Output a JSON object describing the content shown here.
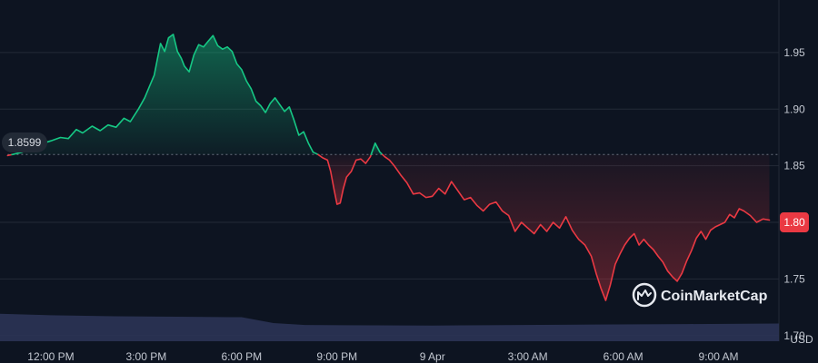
{
  "chart_data": {
    "type": "area",
    "title": "",
    "currency": "USD",
    "brand": "CoinMarketCap",
    "baseline_value": 1.8599,
    "baseline_label": "1.8599",
    "current_value": 1.8,
    "current_label": "1.80",
    "ylim": [
      1.695,
      1.99
    ],
    "y_ticks": [
      {
        "value": 1.95,
        "label": "1.95"
      },
      {
        "value": 1.9,
        "label": "1.90"
      },
      {
        "value": 1.85,
        "label": "1.85"
      },
      {
        "value": 1.8,
        "label": "1.80"
      },
      {
        "value": 1.75,
        "label": "1.75"
      },
      {
        "value": 1.7,
        "label": "1.70"
      }
    ],
    "x_unit": "hours since 12:00 PM",
    "xlim": [
      -1.6,
      22.9
    ],
    "x_ticks": [
      {
        "value": 0,
        "label": "12:00 PM"
      },
      {
        "value": 3,
        "label": "3:00 PM"
      },
      {
        "value": 6,
        "label": "6:00 PM"
      },
      {
        "value": 9,
        "label": "9:00 PM"
      },
      {
        "value": 12,
        "label": "9 Apr"
      },
      {
        "value": 15,
        "label": "3:00 AM"
      },
      {
        "value": 18,
        "label": "6:00 AM"
      },
      {
        "value": 21,
        "label": "9:00 AM"
      }
    ],
    "grid": true,
    "colors": {
      "background": "#0d1421",
      "up": "#16c784",
      "down": "#ea3943",
      "grid": "#232a37",
      "volume": "#2b3355",
      "baseline": "#6b7280"
    },
    "series": [
      {
        "name": "",
        "points": [
          [
            -1.36,
            1.859
          ],
          [
            -0.9,
            1.862
          ],
          [
            -0.45,
            1.868
          ],
          [
            0.0,
            1.872
          ],
          [
            0.3,
            1.875
          ],
          [
            0.55,
            1.874
          ],
          [
            0.8,
            1.882
          ],
          [
            1.0,
            1.879
          ],
          [
            1.3,
            1.885
          ],
          [
            1.55,
            1.881
          ],
          [
            1.8,
            1.886
          ],
          [
            2.05,
            1.884
          ],
          [
            2.3,
            1.892
          ],
          [
            2.5,
            1.889
          ],
          [
            2.75,
            1.9
          ],
          [
            2.95,
            1.91
          ],
          [
            3.1,
            1.92
          ],
          [
            3.25,
            1.93
          ],
          [
            3.35,
            1.944
          ],
          [
            3.45,
            1.958
          ],
          [
            3.58,
            1.951
          ],
          [
            3.7,
            1.963
          ],
          [
            3.85,
            1.966
          ],
          [
            3.98,
            1.951
          ],
          [
            4.1,
            1.945
          ],
          [
            4.2,
            1.938
          ],
          [
            4.35,
            1.933
          ],
          [
            4.5,
            1.948
          ],
          [
            4.65,
            1.957
          ],
          [
            4.8,
            1.955
          ],
          [
            4.95,
            1.96
          ],
          [
            5.1,
            1.965
          ],
          [
            5.25,
            1.956
          ],
          [
            5.4,
            1.953
          ],
          [
            5.55,
            1.955
          ],
          [
            5.7,
            1.951
          ],
          [
            5.85,
            1.94
          ],
          [
            6.0,
            1.935
          ],
          [
            6.15,
            1.925
          ],
          [
            6.3,
            1.918
          ],
          [
            6.45,
            1.907
          ],
          [
            6.6,
            1.903
          ],
          [
            6.75,
            1.897
          ],
          [
            6.9,
            1.905
          ],
          [
            7.05,
            1.91
          ],
          [
            7.2,
            1.904
          ],
          [
            7.35,
            1.898
          ],
          [
            7.5,
            1.902
          ],
          [
            7.65,
            1.89
          ],
          [
            7.8,
            1.877
          ],
          [
            7.95,
            1.88
          ],
          [
            8.1,
            1.87
          ],
          [
            8.25,
            1.862
          ],
          [
            8.4,
            1.86
          ],
          [
            8.55,
            1.857
          ],
          [
            8.7,
            1.855
          ],
          [
            8.8,
            1.845
          ],
          [
            8.9,
            1.83
          ],
          [
            9.0,
            1.816
          ],
          [
            9.1,
            1.817
          ],
          [
            9.2,
            1.83
          ],
          [
            9.3,
            1.84
          ],
          [
            9.45,
            1.845
          ],
          [
            9.6,
            1.855
          ],
          [
            9.75,
            1.856
          ],
          [
            9.9,
            1.852
          ],
          [
            10.05,
            1.858
          ],
          [
            10.2,
            1.87
          ],
          [
            10.35,
            1.862
          ],
          [
            10.5,
            1.858
          ],
          [
            10.65,
            1.855
          ],
          [
            10.8,
            1.85
          ],
          [
            11.0,
            1.842
          ],
          [
            11.2,
            1.835
          ],
          [
            11.4,
            1.825
          ],
          [
            11.6,
            1.826
          ],
          [
            11.8,
            1.822
          ],
          [
            12.0,
            1.823
          ],
          [
            12.2,
            1.83
          ],
          [
            12.4,
            1.825
          ],
          [
            12.6,
            1.836
          ],
          [
            12.8,
            1.828
          ],
          [
            13.0,
            1.82
          ],
          [
            13.2,
            1.822
          ],
          [
            13.4,
            1.815
          ],
          [
            13.6,
            1.81
          ],
          [
            13.8,
            1.816
          ],
          [
            14.0,
            1.818
          ],
          [
            14.2,
            1.81
          ],
          [
            14.4,
            1.806
          ],
          [
            14.6,
            1.792
          ],
          [
            14.8,
            1.8
          ],
          [
            15.0,
            1.795
          ],
          [
            15.2,
            1.79
          ],
          [
            15.4,
            1.798
          ],
          [
            15.6,
            1.792
          ],
          [
            15.8,
            1.8
          ],
          [
            16.0,
            1.795
          ],
          [
            16.2,
            1.805
          ],
          [
            16.4,
            1.793
          ],
          [
            16.6,
            1.785
          ],
          [
            16.8,
            1.78
          ],
          [
            17.0,
            1.77
          ],
          [
            17.15,
            1.755
          ],
          [
            17.3,
            1.742
          ],
          [
            17.45,
            1.731
          ],
          [
            17.6,
            1.745
          ],
          [
            17.75,
            1.763
          ],
          [
            17.9,
            1.772
          ],
          [
            18.05,
            1.78
          ],
          [
            18.2,
            1.786
          ],
          [
            18.35,
            1.79
          ],
          [
            18.5,
            1.78
          ],
          [
            18.65,
            1.785
          ],
          [
            18.8,
            1.78
          ],
          [
            18.95,
            1.776
          ],
          [
            19.1,
            1.77
          ],
          [
            19.25,
            1.765
          ],
          [
            19.4,
            1.757
          ],
          [
            19.55,
            1.752
          ],
          [
            19.7,
            1.748
          ],
          [
            19.85,
            1.755
          ],
          [
            20.0,
            1.766
          ],
          [
            20.15,
            1.775
          ],
          [
            20.3,
            1.786
          ],
          [
            20.45,
            1.792
          ],
          [
            20.6,
            1.785
          ],
          [
            20.75,
            1.793
          ],
          [
            20.9,
            1.796
          ],
          [
            21.05,
            1.798
          ],
          [
            21.2,
            1.8
          ],
          [
            21.35,
            1.807
          ],
          [
            21.5,
            1.804
          ],
          [
            21.65,
            1.812
          ],
          [
            21.8,
            1.81
          ],
          [
            22.0,
            1.806
          ],
          [
            22.2,
            1.8
          ],
          [
            22.4,
            1.803
          ],
          [
            22.6,
            1.802
          ]
        ]
      }
    ],
    "volume_levels": [
      [
        -1.6,
        0.56
      ],
      [
        0.0,
        0.53
      ],
      [
        2.0,
        0.51
      ],
      [
        4.0,
        0.5
      ],
      [
        6.0,
        0.49
      ],
      [
        7.0,
        0.37
      ],
      [
        8.0,
        0.33
      ],
      [
        12.0,
        0.32
      ],
      [
        17.0,
        0.34
      ],
      [
        20.0,
        0.35
      ],
      [
        22.9,
        0.36
      ]
    ]
  }
}
